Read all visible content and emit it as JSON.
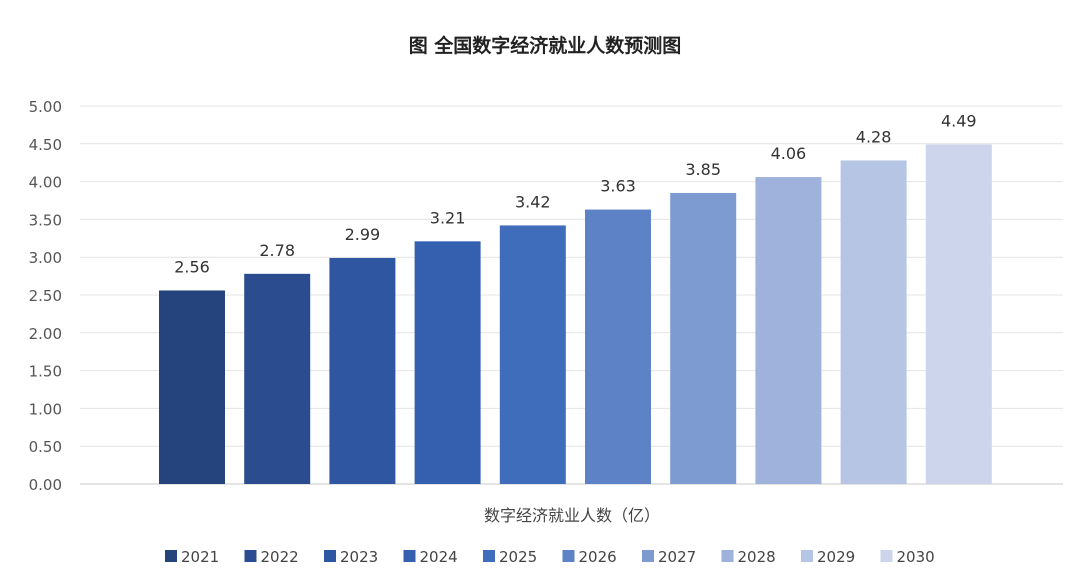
{
  "chart_data": {
    "type": "bar",
    "title": "图  全国数字经济就业人数预测图",
    "xlabel": "数字经济就业人数（亿）",
    "ylabel": "",
    "ylim": [
      0,
      5
    ],
    "yticks": [
      "0.00",
      "0.50",
      "1.00",
      "1.50",
      "2.00",
      "2.50",
      "3.00",
      "3.50",
      "4.00",
      "4.50",
      "5.00"
    ],
    "grid": true,
    "legend_position": "bottom",
    "series": [
      {
        "name": "2021",
        "value": 2.56,
        "label": "2.56",
        "color": "#25437c"
      },
      {
        "name": "2022",
        "value": 2.78,
        "label": "2.78",
        "color": "#2b4d8f"
      },
      {
        "name": "2023",
        "value": 2.99,
        "label": "2.99",
        "color": "#2f56a1"
      },
      {
        "name": "2024",
        "value": 3.21,
        "label": "3.21",
        "color": "#3560b0"
      },
      {
        "name": "2025",
        "value": 3.42,
        "label": "3.42",
        "color": "#3f6cbb"
      },
      {
        "name": "2026",
        "value": 3.63,
        "label": "3.63",
        "color": "#5d82c6"
      },
      {
        "name": "2027",
        "value": 3.85,
        "label": "3.85",
        "color": "#7e9bd1"
      },
      {
        "name": "2028",
        "value": 4.06,
        "label": "4.06",
        "color": "#9eb2db"
      },
      {
        "name": "2029",
        "value": 4.28,
        "label": "4.28",
        "color": "#b6c5e4"
      },
      {
        "name": "2030",
        "value": 4.49,
        "label": "4.49",
        "color": "#ccd5ec"
      }
    ]
  }
}
